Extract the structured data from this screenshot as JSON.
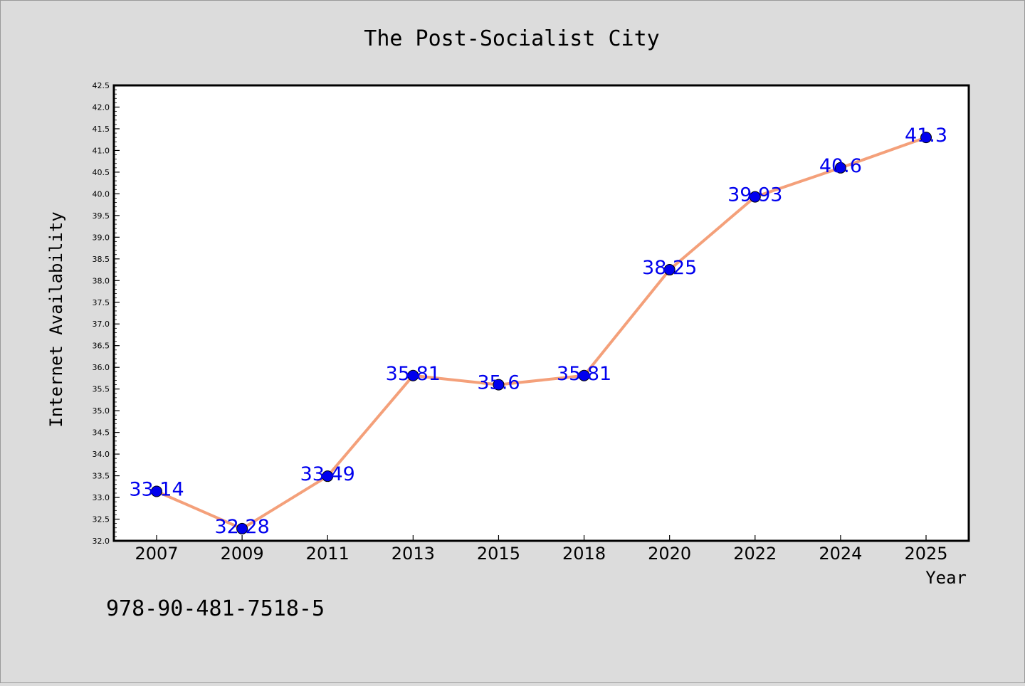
{
  "chart_data": {
    "type": "line",
    "title": "The Post-Socialist City",
    "xlabel": "Year",
    "ylabel": "Internet Availability",
    "categories": [
      "2007",
      "2009",
      "2011",
      "2013",
      "2015",
      "2018",
      "2020",
      "2022",
      "2024",
      "2025"
    ],
    "series": [
      {
        "values": [
          33.14,
          32.28,
          33.49,
          35.81,
          35.6,
          35.81,
          38.25,
          39.93,
          40.6,
          41.3
        ],
        "labels": [
          "33.14",
          "32.28",
          "33.49",
          "35.81",
          "35.6",
          "35.81",
          "38.25",
          "39.93",
          "40.6",
          "41.3"
        ],
        "line_color": "#f4a07a",
        "marker_color": "#0000ee",
        "label_color": "#0000ee"
      }
    ],
    "ylim": [
      32.0,
      42.5
    ],
    "yticks": [
      "32.0",
      "32.5",
      "33.0",
      "33.5",
      "34.0",
      "34.5",
      "35.0",
      "35.5",
      "36.0",
      "36.5",
      "37.0",
      "37.5",
      "38.0",
      "38.5",
      "39.0",
      "39.5",
      "40.0",
      "40.5",
      "41.0",
      "41.5",
      "42.0",
      "42.5"
    ],
    "grid": false,
    "legend": "none",
    "annotation": "978-90-481-7518-5"
  },
  "colors": {
    "background": "#dcdcdc",
    "plot_background": "#ffffff",
    "axis": "#000000"
  }
}
